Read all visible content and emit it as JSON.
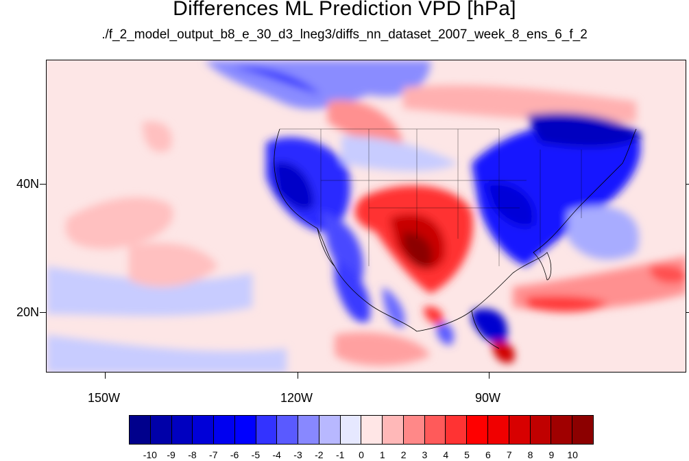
{
  "title": "Differences ML Prediction VPD [hPa]",
  "subtitle": "./f_2_model_output_b8_e_30_d3_lneg3/diffs_nn_dataset_2007_week_8_ens_6_f_2",
  "map": {
    "lat_labels": [
      "40N",
      "20N"
    ],
    "lon_labels": [
      "150W",
      "120W",
      "90W"
    ]
  },
  "colorbar": {
    "labels": [
      "-10",
      "-9",
      "-8",
      "-7",
      "-6",
      "-5",
      "-4",
      "-3",
      "-2",
      "-1",
      "0",
      "1",
      "2",
      "3",
      "4",
      "5",
      "6",
      "7",
      "8",
      "9",
      "10"
    ],
    "colors": [
      "#00008c",
      "#0000a8",
      "#0000c0",
      "#0000d8",
      "#0000f0",
      "#0000ff",
      "#3333ff",
      "#5a5aff",
      "#8888ff",
      "#b8b8ff",
      "#e6e8ff",
      "#ffe6e6",
      "#ffb8b8",
      "#ff8888",
      "#ff5a5a",
      "#ff3333",
      "#ff0000",
      "#f00000",
      "#d80000",
      "#c00000",
      "#a00000",
      "#8c0000"
    ]
  }
}
